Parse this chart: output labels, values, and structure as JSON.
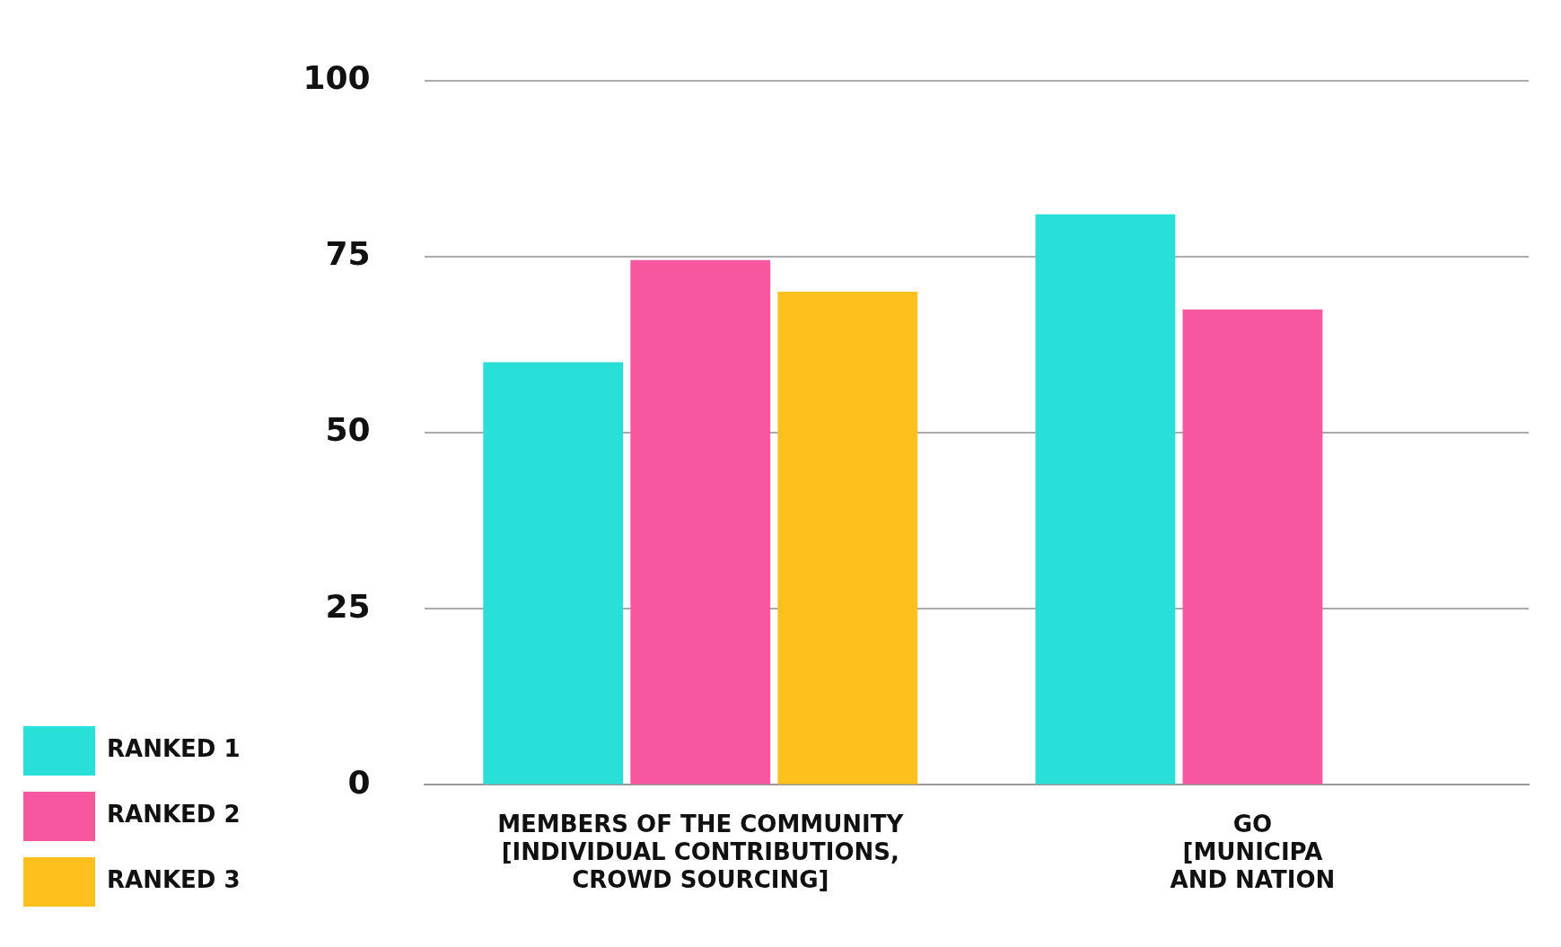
{
  "chart_data": {
    "type": "bar",
    "categories": [
      "MEMBERS OF THE COMMUNITY\n[INDIVIDUAL CONTRIBUTIONS,\nCROWD SOURCING]",
      "GO\n[MUNICIPA\nAND NATION"
    ],
    "series": [
      {
        "name": "RANKED 1",
        "color": "#29e0d9",
        "values": [
          60,
          81
        ]
      },
      {
        "name": "RANKED 2",
        "color": "#f7579f",
        "values": [
          74.5,
          67.5
        ]
      },
      {
        "name": "RANKED 3",
        "color": "#fdc01d",
        "values": [
          70,
          null
        ]
      }
    ],
    "ylim": [
      0,
      100
    ],
    "yticks": [
      0,
      25,
      50,
      75,
      100
    ],
    "grid": "y",
    "legend": "bottom left"
  }
}
